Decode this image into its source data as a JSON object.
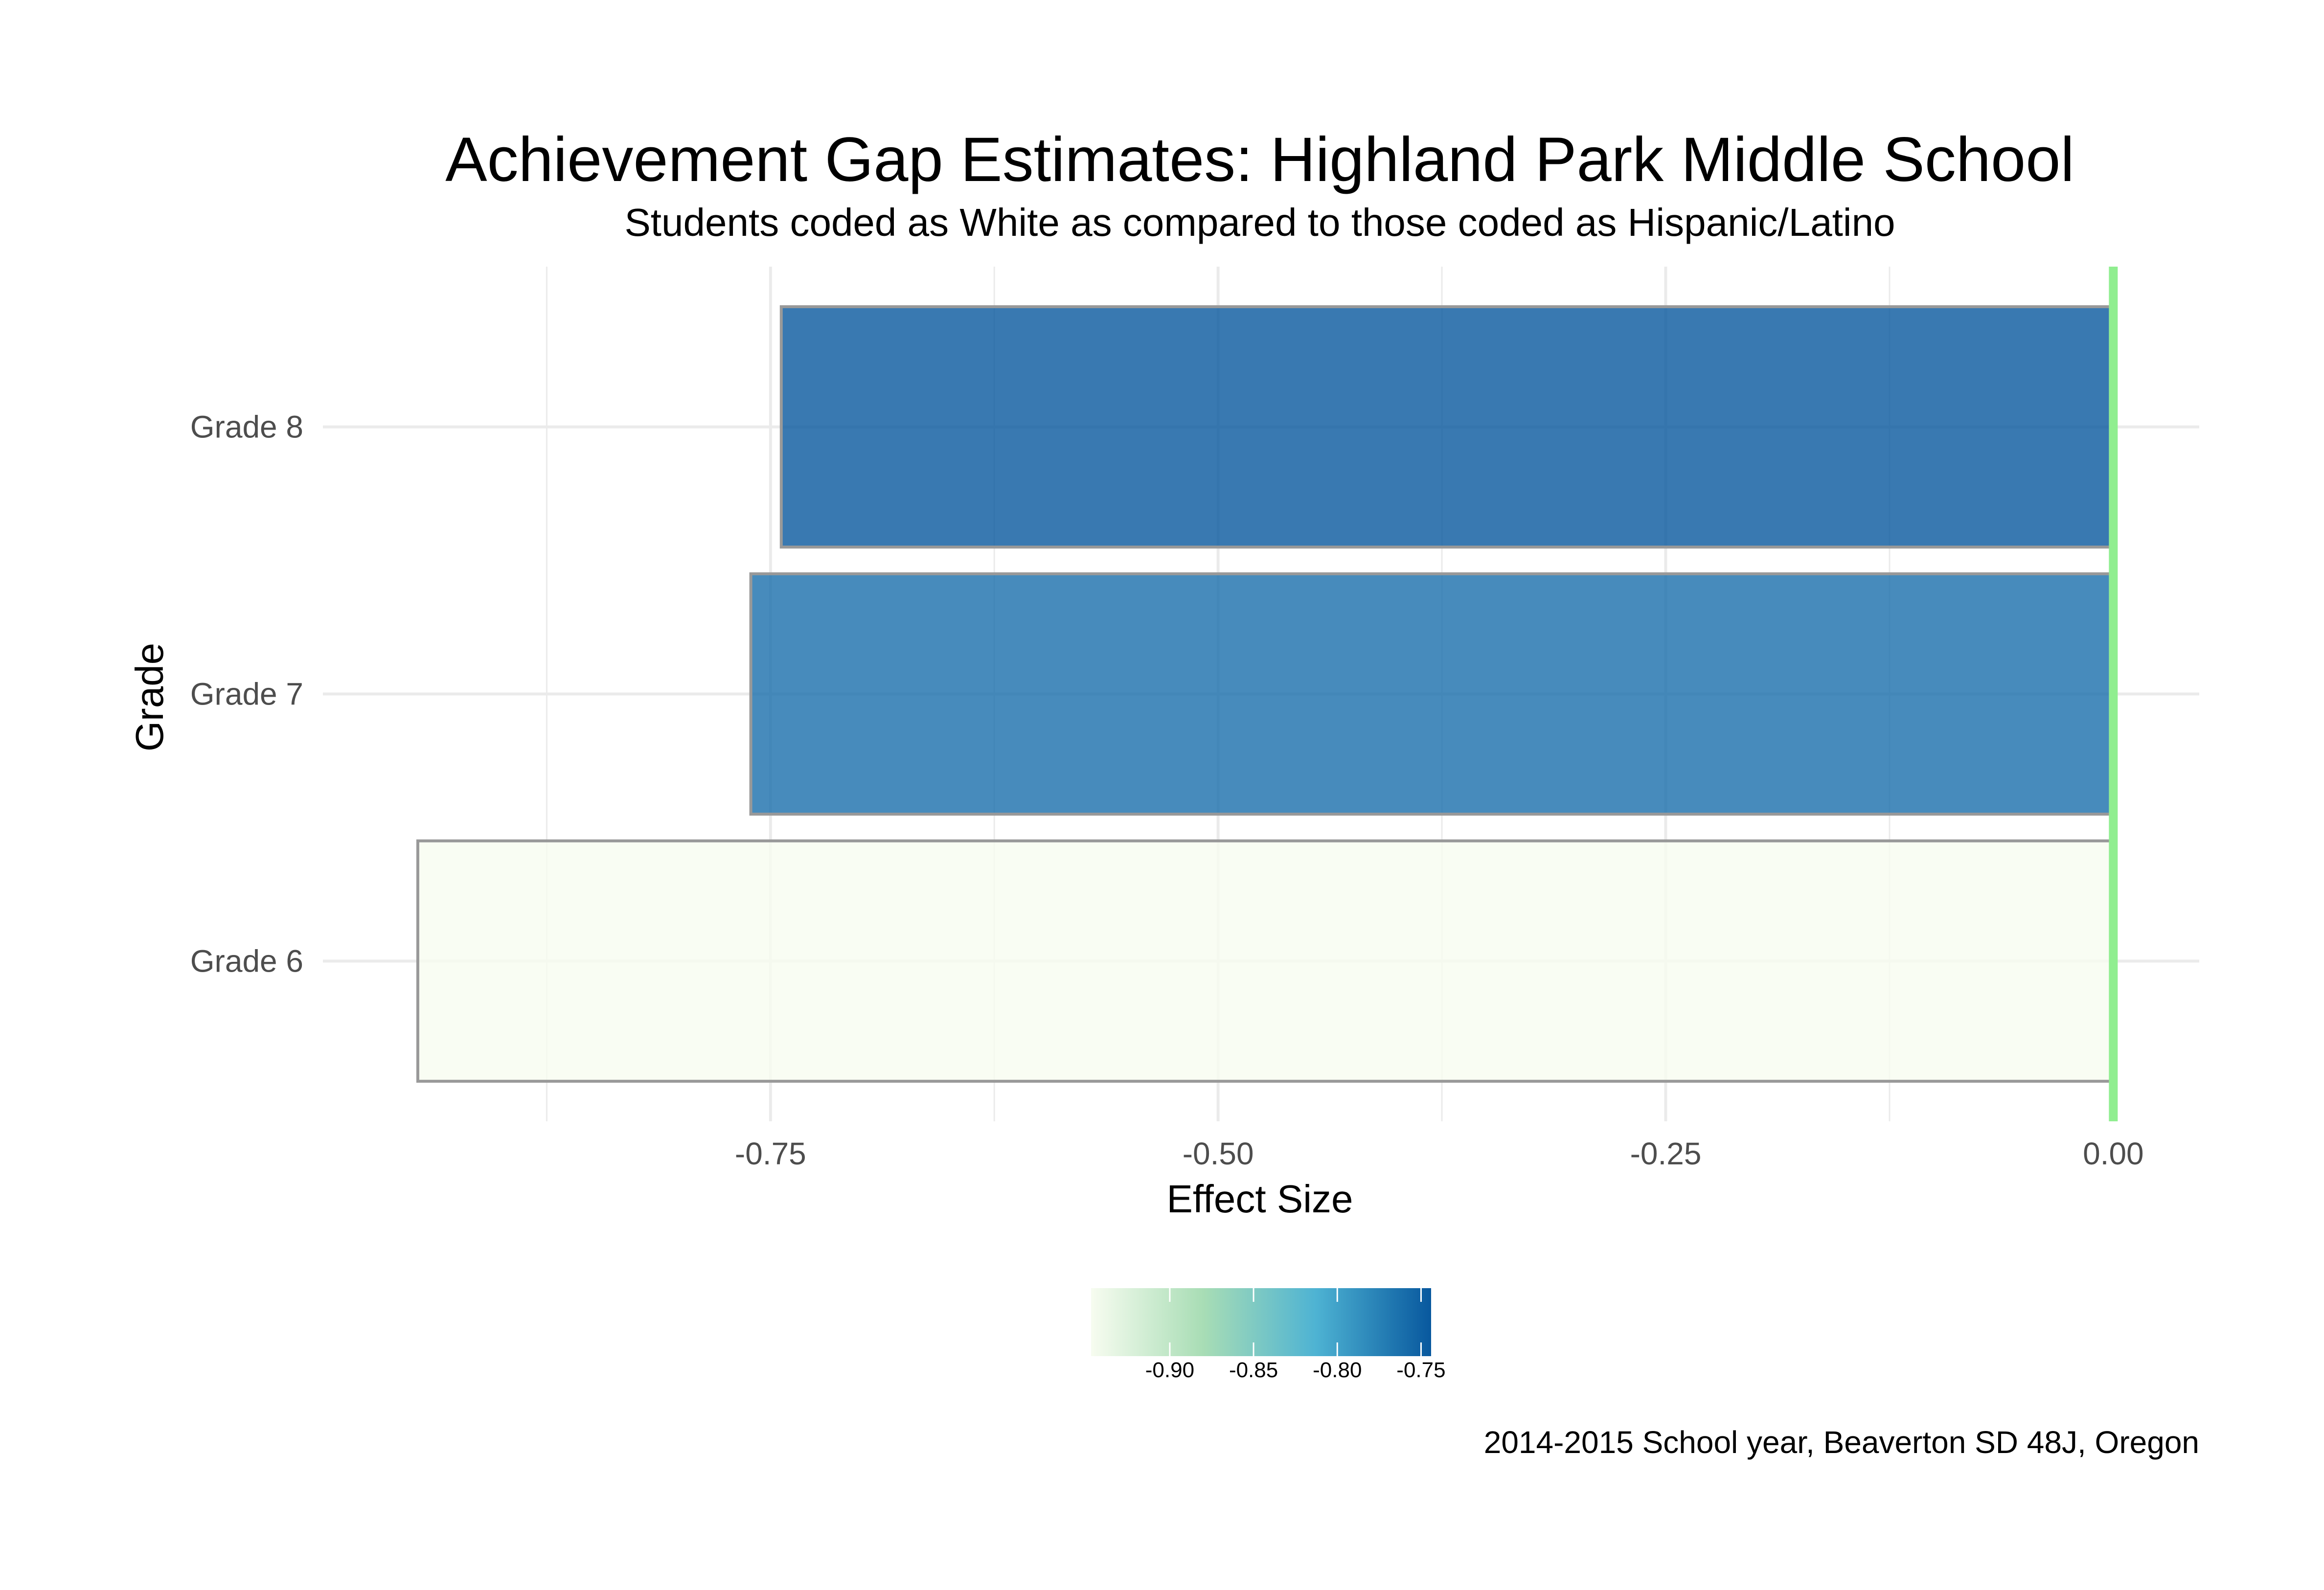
{
  "chart_data": {
    "type": "bar",
    "orientation": "horizontal",
    "title": "Achievement Gap Estimates: Highland Park Middle School",
    "subtitle": "Students coded as White as compared to those coded as Hispanic/Latino",
    "xlabel": "Effect Size",
    "ylabel": "Grade",
    "categories": [
      "Grade 6",
      "Grade 7",
      "Grade 8"
    ],
    "values": [
      -0.947,
      -0.761,
      -0.744
    ],
    "xlim": [
      -1.0,
      0.048
    ],
    "xticks": [
      -0.75,
      -0.5,
      -0.25,
      0.0
    ],
    "xtick_labels": [
      "-0.75",
      "-0.50",
      "-0.25",
      "0.00"
    ],
    "reference_line": 0.0,
    "grid": true,
    "legend": {
      "position": "bottom",
      "type": "colorbar",
      "range": [
        -0.947,
        -0.744
      ],
      "ticks": [
        -0.9,
        -0.85,
        -0.8,
        -0.75
      ],
      "tick_labels": [
        "-0.90",
        "-0.85",
        "-0.80",
        "-0.75"
      ]
    },
    "caption": "2014-2015 School year, Beaverton SD 48J, Oregon",
    "colors": {
      "scale_low": "#f7fcf0",
      "scale_mid1": "#a8ddb5",
      "scale_mid2": "#4eb3d3",
      "scale_high": "#08589e",
      "reference_line": "#90ee90",
      "bar_outline": "#999999",
      "grid": "#ebebeb"
    }
  }
}
